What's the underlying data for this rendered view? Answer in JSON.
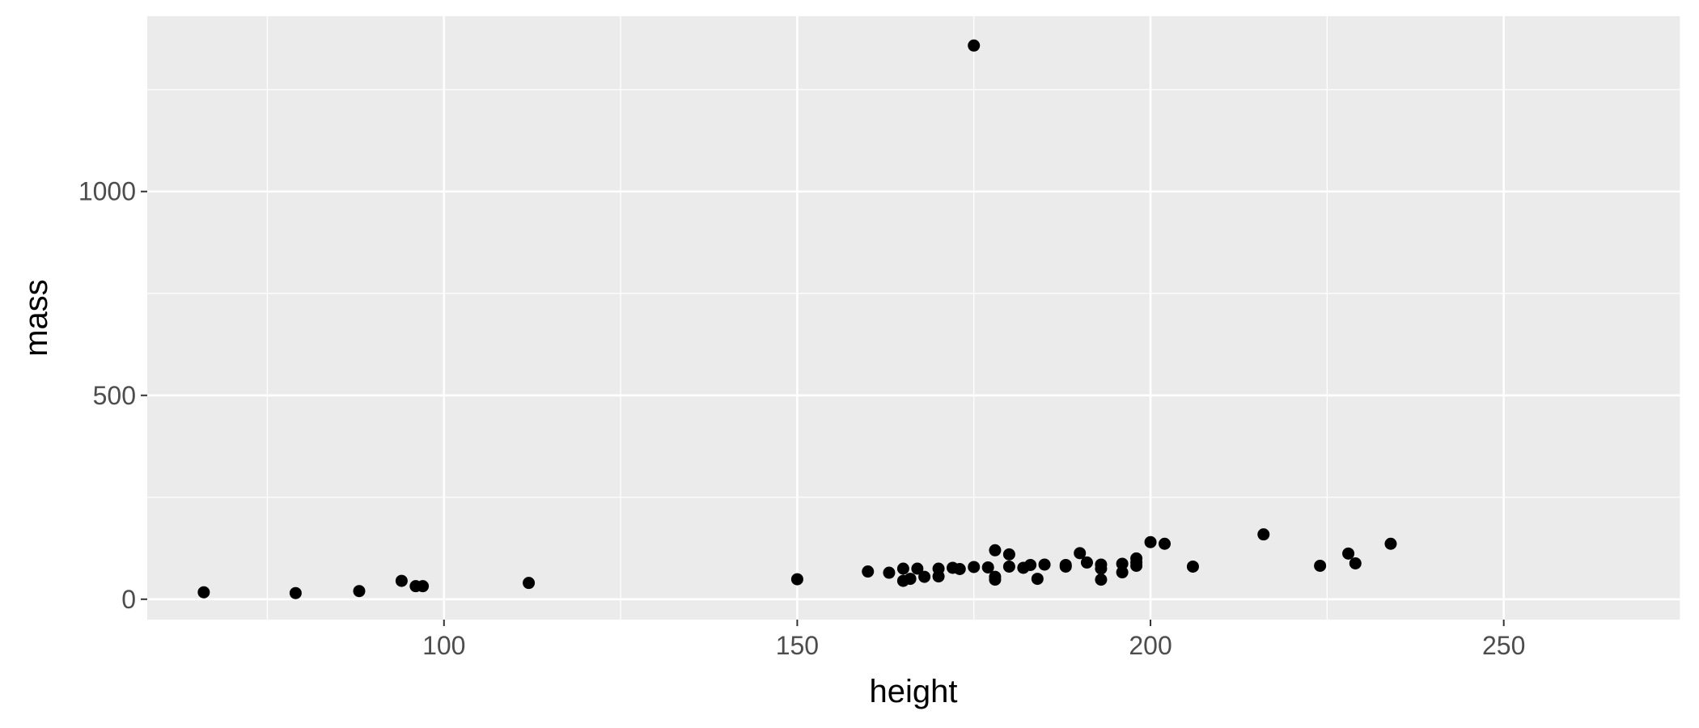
{
  "chart_data": {
    "type": "scatter",
    "xlabel": "height",
    "ylabel": "mass",
    "xlim": [
      58,
      275
    ],
    "ylim": [
      -50,
      1430
    ],
    "x_ticks": [
      100,
      150,
      200,
      250
    ],
    "x_minor_ticks": [
      75,
      125,
      175,
      225,
      275
    ],
    "y_ticks": [
      0,
      500,
      1000
    ],
    "y_minor_ticks": [
      250,
      750,
      1250
    ],
    "grid": true,
    "legend": "none",
    "colors": {
      "panel": "#ebebeb",
      "grid": "#ffffff",
      "point": "#000000",
      "tick_text": "#4d4d4d",
      "title_text": "#000000"
    },
    "points": [
      {
        "x": 66,
        "y": 17
      },
      {
        "x": 79,
        "y": 15
      },
      {
        "x": 88,
        "y": 20
      },
      {
        "x": 94,
        "y": 45
      },
      {
        "x": 96,
        "y": 32
      },
      {
        "x": 97,
        "y": 32
      },
      {
        "x": 112,
        "y": 40
      },
      {
        "x": 150,
        "y": 49
      },
      {
        "x": 160,
        "y": 68
      },
      {
        "x": 163,
        "y": 65
      },
      {
        "x": 165,
        "y": 45
      },
      {
        "x": 165,
        "y": 75
      },
      {
        "x": 166,
        "y": 50
      },
      {
        "x": 167,
        "y": 75
      },
      {
        "x": 168,
        "y": 55
      },
      {
        "x": 170,
        "y": 56
      },
      {
        "x": 170,
        "y": 75
      },
      {
        "x": 172,
        "y": 77
      },
      {
        "x": 173,
        "y": 74
      },
      {
        "x": 175,
        "y": 1358
      },
      {
        "x": 175,
        "y": 79
      },
      {
        "x": 177,
        "y": 78
      },
      {
        "x": 178,
        "y": 120
      },
      {
        "x": 178,
        "y": 48
      },
      {
        "x": 178,
        "y": 55
      },
      {
        "x": 180,
        "y": 110
      },
      {
        "x": 180,
        "y": 80
      },
      {
        "x": 182,
        "y": 77
      },
      {
        "x": 183,
        "y": 84
      },
      {
        "x": 184,
        "y": 50
      },
      {
        "x": 185,
        "y": 85
      },
      {
        "x": 188,
        "y": 80
      },
      {
        "x": 188,
        "y": 84
      },
      {
        "x": 190,
        "y": 113
      },
      {
        "x": 191,
        "y": 90
      },
      {
        "x": 193,
        "y": 85
      },
      {
        "x": 193,
        "y": 48
      },
      {
        "x": 193,
        "y": 75
      },
      {
        "x": 196,
        "y": 66
      },
      {
        "x": 196,
        "y": 87
      },
      {
        "x": 198,
        "y": 82
      },
      {
        "x": 198,
        "y": 90
      },
      {
        "x": 198,
        "y": 100
      },
      {
        "x": 200,
        "y": 140
      },
      {
        "x": 202,
        "y": 136
      },
      {
        "x": 206,
        "y": 80
      },
      {
        "x": 216,
        "y": 159
      },
      {
        "x": 224,
        "y": 82
      },
      {
        "x": 228,
        "y": 112
      },
      {
        "x": 229,
        "y": 88
      },
      {
        "x": 234,
        "y": 136
      }
    ]
  }
}
